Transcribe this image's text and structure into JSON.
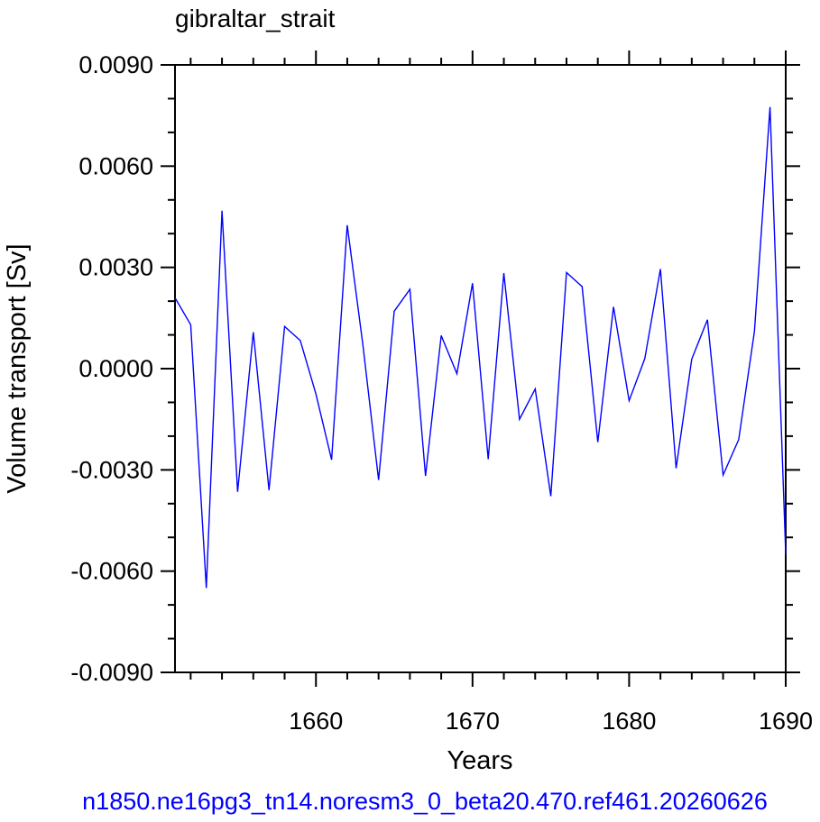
{
  "chart_data": {
    "type": "line",
    "title": "gibraltar_strait",
    "xlabel": "Years",
    "ylabel": "Volume transport [Sv]",
    "xlim": [
      1651,
      1690
    ],
    "ylim": [
      -0.009,
      0.009
    ],
    "x_ticks": [
      1660,
      1670,
      1680,
      1690
    ],
    "x_tick_labels": [
      "1660",
      "1670",
      "1680",
      "1690"
    ],
    "y_ticks": [
      -0.009,
      -0.006,
      -0.003,
      0.0,
      0.003,
      0.006,
      0.009
    ],
    "y_tick_labels": [
      "-0.0090",
      "-0.0060",
      "-0.0030",
      "0.0000",
      "0.0030",
      "0.0060",
      "0.0090"
    ],
    "grid": false,
    "series": [
      {
        "color": "#0000ff",
        "x": [
          1651,
          1652,
          1653,
          1654,
          1655,
          1656,
          1657,
          1658,
          1659,
          1660,
          1661,
          1662,
          1663,
          1664,
          1665,
          1666,
          1667,
          1668,
          1669,
          1670,
          1671,
          1672,
          1673,
          1674,
          1675,
          1676,
          1677,
          1678,
          1679,
          1680,
          1681,
          1682,
          1683,
          1684,
          1685,
          1686,
          1687,
          1688,
          1689,
          1690
        ],
        "values": [
          0.0021,
          0.0013,
          -0.0065,
          0.00468,
          -0.00365,
          0.00108,
          -0.0036,
          0.00125,
          0.00083,
          -0.00075,
          -0.0027,
          0.00425,
          0.0007,
          -0.0033,
          0.0017,
          0.00235,
          -0.00318,
          0.00098,
          -0.00015,
          0.00253,
          -0.00268,
          0.00283,
          -0.0015,
          -0.0006,
          -0.00378,
          0.00285,
          0.00243,
          -0.00218,
          0.00183,
          -0.00095,
          0.0003,
          0.00295,
          -0.00295,
          0.00028,
          0.00145,
          -0.00315,
          -0.0021,
          0.0011,
          0.00775,
          -0.0055
        ]
      }
    ]
  },
  "footer": "n1850.ne16pg3_tn14.noresm3_0_beta20.470.ref461.20260626"
}
